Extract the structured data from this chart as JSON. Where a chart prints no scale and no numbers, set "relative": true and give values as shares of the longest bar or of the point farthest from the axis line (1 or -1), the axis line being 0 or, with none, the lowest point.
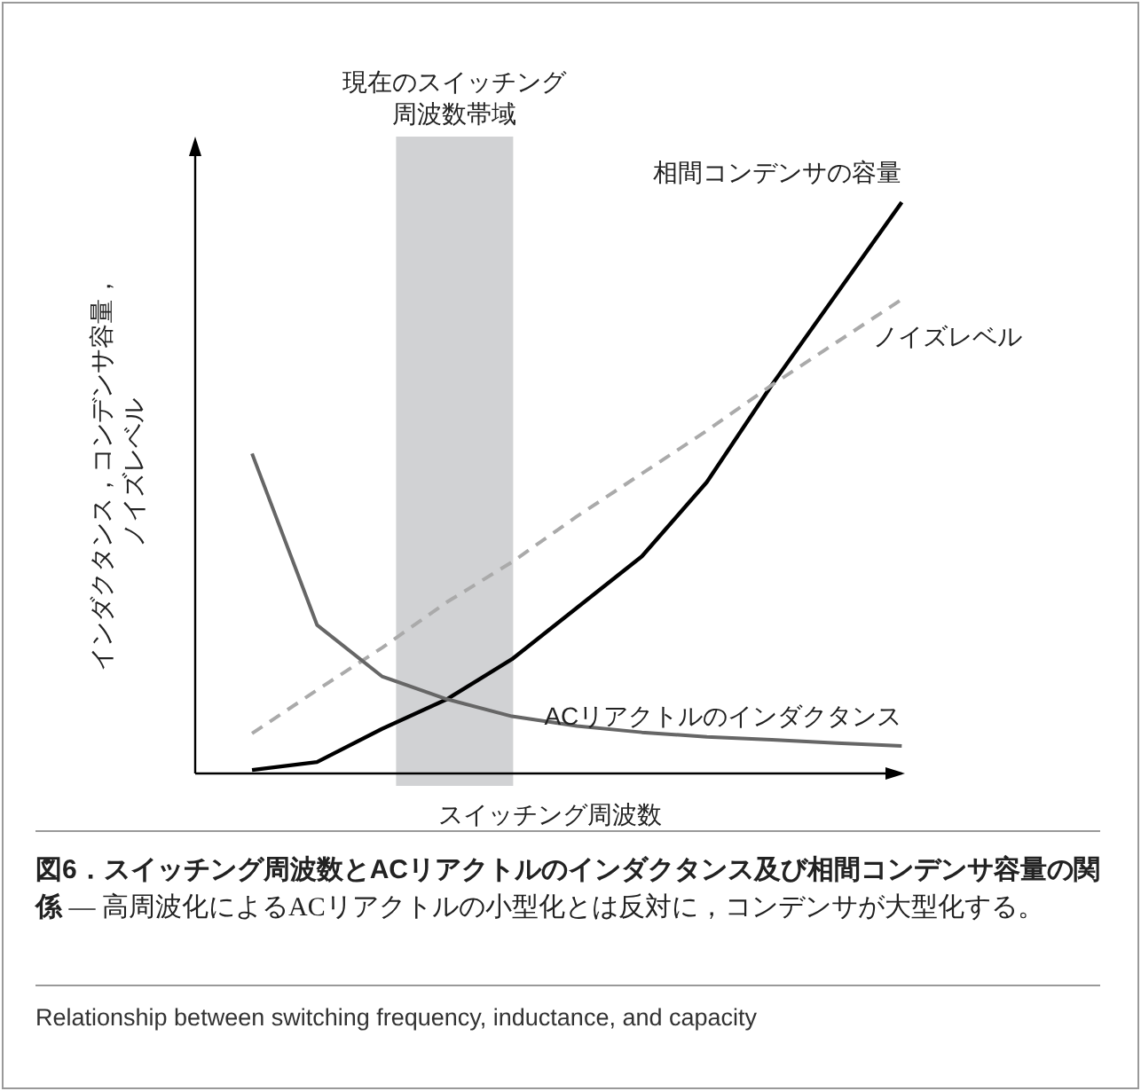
{
  "chart_data": {
    "type": "line",
    "relative": true,
    "title": "図6．スイッチング周波数とACリアクトルのインダクタンス及び相間コンデンサ容量の関係",
    "subtitle": "— 高周波化によるACリアクトルの小型化とは反対に，コンデンサが大型化する。",
    "xlabel": "スイッチング周波数",
    "ylabel": "インダクタンス，コンデンサ容量，ノイズレベル",
    "annotations": [
      "現在のスイッチング周波数帯域",
      "Relationship between switching frequency, inductance, and capacity"
    ],
    "categories": [
      null,
      null,
      null,
      null,
      null,
      null,
      null,
      null,
      null,
      null,
      null
    ],
    "series": [
      {
        "name": "相間コンデンサの容量",
        "color": "#000000",
        "line_style": "solid",
        "values": [
          0.006,
          0.02,
          0.078,
          0.13,
          0.2,
          0.29,
          0.38,
          0.51,
          0.68,
          0.84,
          1
        ]
      },
      {
        "name": "ノイズレベル",
        "color": "#aaaaaa",
        "line_style": "dashed",
        "values": [
          0.07,
          0.146,
          0.22,
          0.3,
          0.37,
          0.45,
          0.525,
          0.6,
          0.68,
          0.755,
          0.83
        ]
      },
      {
        "name": "ACリアクトルのインダクタンス",
        "color": "#666666",
        "line_style": "solid",
        "values": [
          0.56,
          0.26,
          0.17,
          0.13,
          0.1,
          0.083,
          0.072,
          0.064,
          0.059,
          0.053,
          0.048
        ]
      }
    ]
  }
}
